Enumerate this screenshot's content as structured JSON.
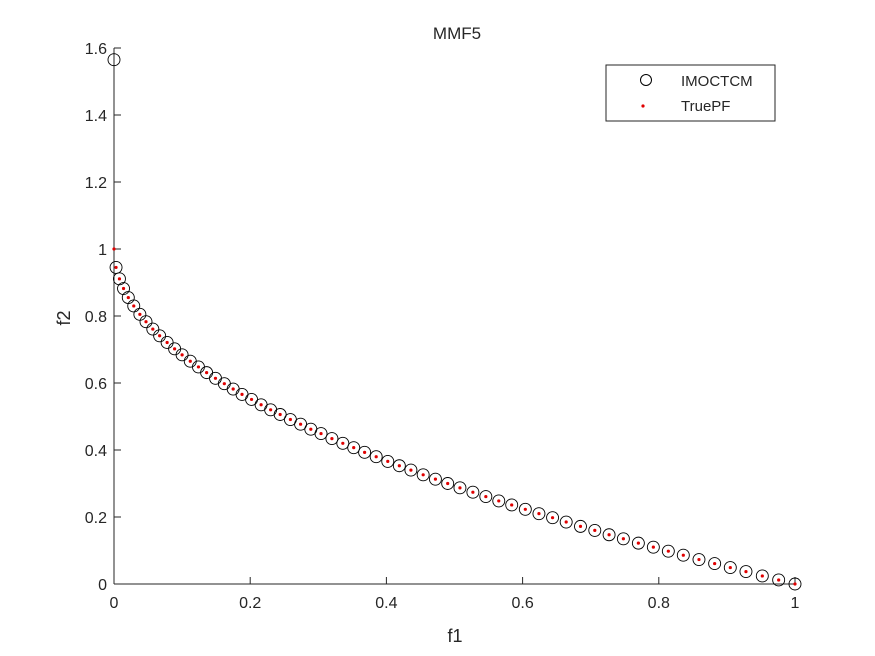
{
  "chart_data": {
    "type": "scatter",
    "title": "MMF5",
    "xlabel": "f1",
    "ylabel": "f2",
    "xlim": [
      0,
      1
    ],
    "ylim": [
      0,
      1.6
    ],
    "xticks": [
      "0",
      "0.2",
      "0.4",
      "0.6",
      "0.8",
      "1"
    ],
    "xtick_values": [
      0,
      0.2,
      0.4,
      0.6,
      0.8,
      1
    ],
    "yticks": [
      "0",
      "0.2",
      "0.4",
      "0.6",
      "0.8",
      "1",
      "1.2",
      "1.4",
      "1.6"
    ],
    "ytick_values": [
      0,
      0.2,
      0.4,
      0.6,
      0.8,
      1,
      1.2,
      1.4,
      1.6
    ],
    "grid": false,
    "legend_position": "top-right",
    "series": [
      {
        "name": "IMOCTCM",
        "marker": "circle-open",
        "color": "#000000",
        "x": [
          0,
          0.003,
          0.008,
          0.014,
          0.021,
          0.029,
          0.038,
          0.047,
          0.057,
          0.067,
          0.078,
          0.089,
          0.1,
          0.112,
          0.124,
          0.136,
          0.149,
          0.162,
          0.175,
          0.188,
          0.202,
          0.216,
          0.23,
          0.244,
          0.259,
          0.274,
          0.289,
          0.304,
          0.32,
          0.336,
          0.352,
          0.368,
          0.385,
          0.402,
          0.419,
          0.436,
          0.454,
          0.472,
          0.49,
          0.508,
          0.527,
          0.546,
          0.565,
          0.584,
          0.604,
          0.624,
          0.644,
          0.664,
          0.685,
          0.706,
          0.727,
          0.748,
          0.77,
          0.792,
          0.814,
          0.836,
          0.859,
          0.882,
          0.905,
          0.928,
          0.952,
          0.976,
          1.0
        ],
        "y": [
          1.565,
          0.945,
          0.911,
          0.882,
          0.855,
          0.83,
          0.805,
          0.783,
          0.761,
          0.741,
          0.721,
          0.702,
          0.684,
          0.665,
          0.648,
          0.631,
          0.614,
          0.598,
          0.582,
          0.566,
          0.551,
          0.535,
          0.52,
          0.506,
          0.491,
          0.477,
          0.462,
          0.449,
          0.434,
          0.42,
          0.407,
          0.393,
          0.38,
          0.366,
          0.353,
          0.34,
          0.326,
          0.313,
          0.3,
          0.287,
          0.274,
          0.261,
          0.248,
          0.236,
          0.223,
          0.21,
          0.198,
          0.185,
          0.172,
          0.16,
          0.147,
          0.135,
          0.122,
          0.11,
          0.098,
          0.086,
          0.073,
          0.061,
          0.049,
          0.037,
          0.024,
          0.012,
          0
        ]
      },
      {
        "name": "TruePF",
        "marker": "dot",
        "color": "#e00000",
        "x": [
          0,
          0.003,
          0.008,
          0.014,
          0.021,
          0.029,
          0.038,
          0.047,
          0.057,
          0.067,
          0.078,
          0.089,
          0.1,
          0.112,
          0.124,
          0.136,
          0.149,
          0.162,
          0.175,
          0.188,
          0.202,
          0.216,
          0.23,
          0.244,
          0.259,
          0.274,
          0.289,
          0.304,
          0.32,
          0.336,
          0.352,
          0.368,
          0.385,
          0.402,
          0.419,
          0.436,
          0.454,
          0.472,
          0.49,
          0.508,
          0.527,
          0.546,
          0.565,
          0.584,
          0.604,
          0.624,
          0.644,
          0.664,
          0.685,
          0.706,
          0.727,
          0.748,
          0.77,
          0.792,
          0.814,
          0.836,
          0.859,
          0.882,
          0.905,
          0.928,
          0.952,
          0.976,
          1.0
        ],
        "y": [
          1.0,
          0.945,
          0.911,
          0.882,
          0.855,
          0.83,
          0.805,
          0.783,
          0.761,
          0.741,
          0.721,
          0.702,
          0.684,
          0.665,
          0.648,
          0.631,
          0.614,
          0.598,
          0.582,
          0.566,
          0.551,
          0.535,
          0.52,
          0.506,
          0.491,
          0.477,
          0.462,
          0.449,
          0.434,
          0.42,
          0.407,
          0.393,
          0.38,
          0.366,
          0.353,
          0.34,
          0.326,
          0.313,
          0.3,
          0.287,
          0.274,
          0.261,
          0.248,
          0.236,
          0.223,
          0.21,
          0.198,
          0.185,
          0.172,
          0.16,
          0.147,
          0.135,
          0.122,
          0.11,
          0.098,
          0.086,
          0.073,
          0.061,
          0.049,
          0.037,
          0.024,
          0.012,
          0
        ]
      }
    ]
  }
}
